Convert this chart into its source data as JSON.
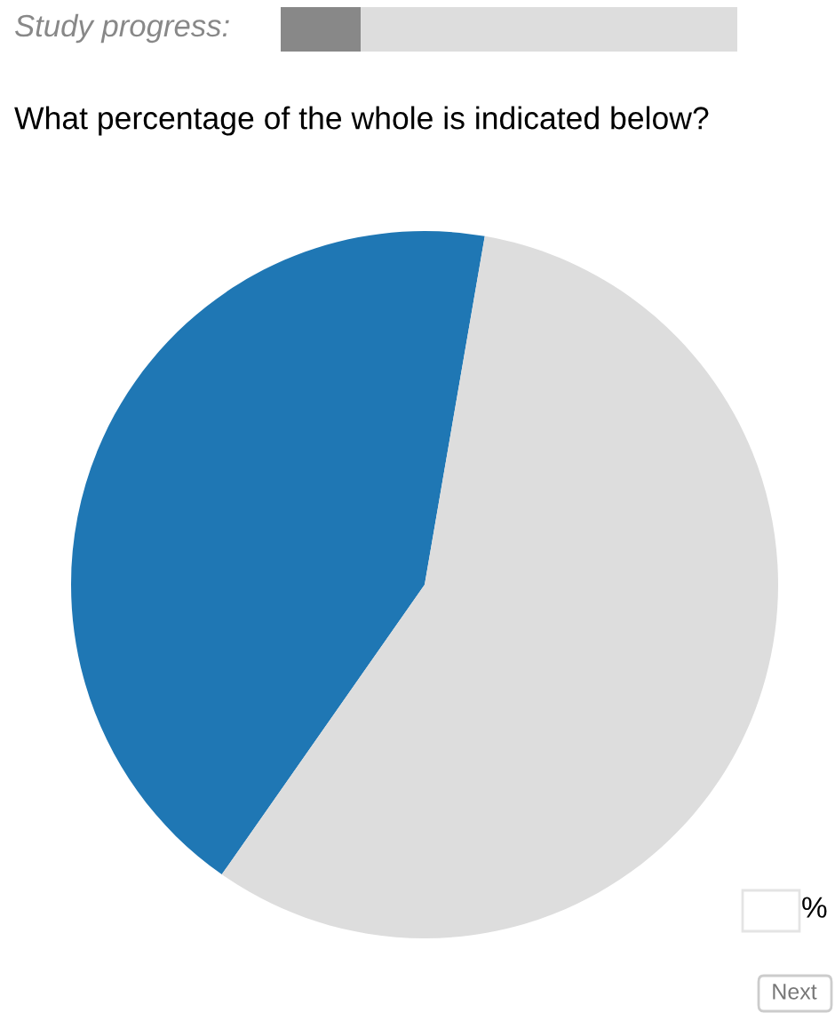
{
  "chart_data": {
    "type": "pie",
    "title": "What percentage of the whole is indicated below?",
    "categories": [
      null,
      null
    ],
    "values": [
      43,
      57
    ],
    "colors": [
      "#1f77b4",
      "#dddddd"
    ],
    "annotations": [
      "Study progress:",
      "%",
      "Next"
    ]
  }
}
